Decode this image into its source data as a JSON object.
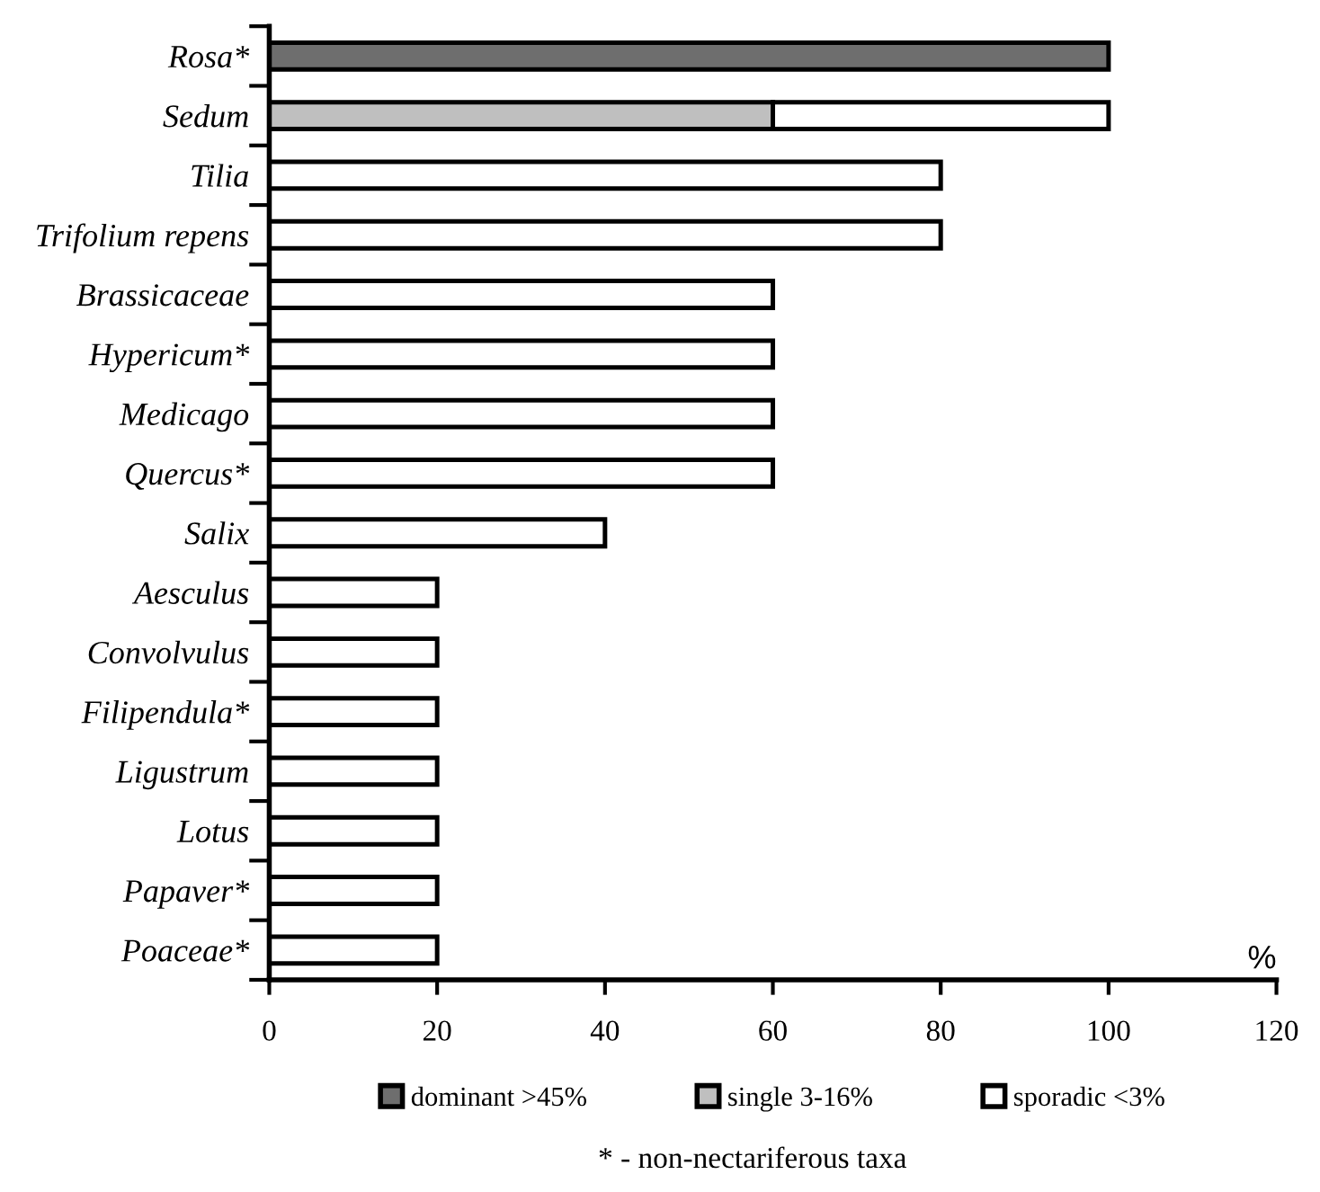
{
  "chart_data": {
    "type": "bar",
    "orientation": "horizontal",
    "stacked": true,
    "categories": [
      "Rosa*",
      "Sedum",
      "Tilia",
      "Trifolium repens",
      "Brassicaceae",
      "Hypericum*",
      "Medicago",
      "Quercus*",
      "Salix",
      "Aesculus",
      "Convolvulus",
      "Filipendula*",
      "Ligustrum",
      "Lotus",
      "Papaver*",
      "Poaceae*"
    ],
    "series": [
      {
        "name": "dominant >45%",
        "color": "#6e6e6e",
        "values": [
          100,
          null,
          null,
          null,
          null,
          null,
          null,
          null,
          null,
          null,
          null,
          null,
          null,
          null,
          null,
          null
        ]
      },
      {
        "name": "single 3-16%",
        "color": "#bfbfbf",
        "values": [
          null,
          60,
          null,
          null,
          null,
          null,
          null,
          null,
          null,
          null,
          null,
          null,
          null,
          null,
          null,
          null
        ]
      },
      {
        "name": "sporadic <3%",
        "color": "#ffffff",
        "values": [
          null,
          40,
          80,
          80,
          60,
          60,
          60,
          60,
          40,
          20,
          20,
          20,
          20,
          20,
          20,
          20
        ]
      }
    ],
    "xlabel": "%",
    "xlim": [
      0,
      120
    ],
    "xticks": [
      0,
      20,
      40,
      60,
      80,
      100,
      120
    ],
    "grid": false,
    "legend": "bottom",
    "annotations": [
      "* - non-nectariferous taxa"
    ]
  }
}
